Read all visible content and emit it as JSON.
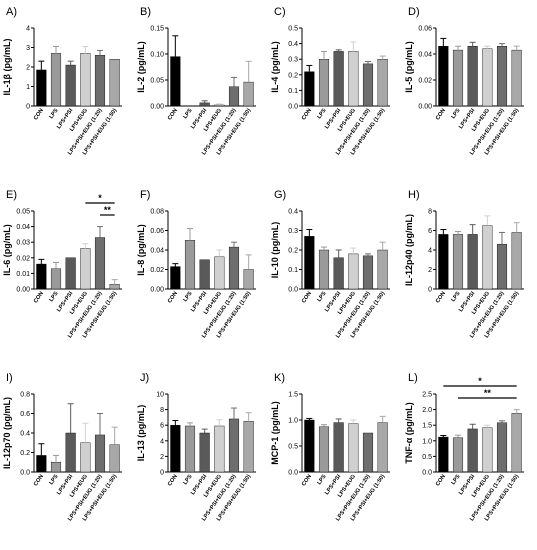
{
  "categories": [
    "CON",
    "LPS",
    "LPS+PSI",
    "LPS+EUG",
    "LPS+PSI+EUG (1:20)",
    "LPS+PSI+EUG (1:50)"
  ],
  "bar_colors": [
    "#000000",
    "#9a9a9a",
    "#5a5a5a",
    "#d0d0d0",
    "#6e6e6e",
    "#a8a8a8"
  ],
  "chart_data": [
    {
      "type": "bar",
      "panel_label": "A)",
      "ylabel": "IL-1β (pg/mL)",
      "ylim": [
        0,
        4
      ],
      "yticks": [
        "0",
        "1",
        "2",
        "3",
        "4"
      ],
      "values": [
        1.85,
        2.7,
        2.1,
        2.7,
        2.6,
        2.4
      ],
      "errors": [
        0.45,
        0.35,
        0.2,
        0.35,
        0.25,
        0.0
      ],
      "significance": []
    },
    {
      "type": "bar",
      "panel_label": "B)",
      "ylabel": "IL-2 (pg/mL)",
      "ylim": [
        0,
        0.15
      ],
      "yticks": [
        "0.00",
        "0.05",
        "0.10",
        "0.15"
      ],
      "values": [
        0.095,
        0.0,
        0.006,
        0.002,
        0.037,
        0.046
      ],
      "errors": [
        0.04,
        0.0,
        0.004,
        0.002,
        0.018,
        0.04
      ],
      "significance": []
    },
    {
      "type": "bar",
      "panel_label": "C)",
      "ylabel": "IL-4 (pg/mL)",
      "ylim": [
        0,
        0.5
      ],
      "yticks": [
        "0.0",
        "0.1",
        "0.2",
        "0.3",
        "0.4",
        "0.5"
      ],
      "values": [
        0.22,
        0.3,
        0.35,
        0.35,
        0.27,
        0.3
      ],
      "errors": [
        0.04,
        0.05,
        0.01,
        0.06,
        0.015,
        0.02
      ],
      "significance": []
    },
    {
      "type": "bar",
      "panel_label": "D)",
      "ylabel": "IL-5 (pg/mL)",
      "ylim": [
        0,
        0.06
      ],
      "yticks": [
        "0.00",
        "0.02",
        "0.04",
        "0.06"
      ],
      "values": [
        0.046,
        0.043,
        0.046,
        0.044,
        0.046,
        0.043
      ],
      "errors": [
        0.006,
        0.003,
        0.003,
        0.002,
        0.002,
        0.003
      ],
      "significance": []
    },
    {
      "type": "bar",
      "panel_label": "E)",
      "ylabel": "IL-6 (pg/mL)",
      "ylim": [
        0,
        0.05
      ],
      "yticks": [
        "0.00",
        "0.01",
        "0.02",
        "0.03",
        "0.04",
        "0.05"
      ],
      "values": [
        0.016,
        0.013,
        0.02,
        0.026,
        0.033,
        0.003
      ],
      "errors": [
        0.003,
        0.004,
        0.0,
        0.003,
        0.007,
        0.003
      ],
      "significance": [
        {
          "from": 3,
          "to": 5,
          "label": "*"
        },
        {
          "from": 4,
          "to": 5,
          "label": "**"
        }
      ]
    },
    {
      "type": "bar",
      "panel_label": "F)",
      "ylabel": "IL-8 (pg/mL)",
      "ylim": [
        0,
        0.08
      ],
      "yticks": [
        "0.00",
        "0.02",
        "0.04",
        "0.06",
        "0.08"
      ],
      "values": [
        0.023,
        0.05,
        0.03,
        0.033,
        0.043,
        0.02
      ],
      "errors": [
        0.003,
        0.012,
        0.0,
        0.007,
        0.005,
        0.015
      ],
      "significance": []
    },
    {
      "type": "bar",
      "panel_label": "G)",
      "ylabel": "IL-10 (pg/mL)",
      "ylim": [
        0,
        0.4
      ],
      "yticks": [
        "0.0",
        "0.1",
        "0.2",
        "0.3",
        "0.4"
      ],
      "values": [
        0.27,
        0.2,
        0.16,
        0.18,
        0.17,
        0.2
      ],
      "errors": [
        0.035,
        0.015,
        0.04,
        0.03,
        0.01,
        0.04
      ],
      "significance": []
    },
    {
      "type": "bar",
      "panel_label": "H)",
      "ylabel": "IL-12p40 (pg/mL)",
      "ylim": [
        0,
        8
      ],
      "yticks": [
        "0",
        "2",
        "4",
        "6",
        "8"
      ],
      "values": [
        5.6,
        5.6,
        5.6,
        6.5,
        4.6,
        5.8
      ],
      "errors": [
        0.5,
        0.3,
        1.0,
        1.0,
        1.2,
        1.0
      ],
      "significance": []
    },
    {
      "type": "bar",
      "panel_label": "I)",
      "ylabel": "IL-12p70 (pg/mL)",
      "ylim": [
        0,
        0.8
      ],
      "yticks": [
        "0.0",
        "0.2",
        "0.4",
        "0.6",
        "0.8"
      ],
      "values": [
        0.17,
        0.1,
        0.4,
        0.3,
        0.38,
        0.28
      ],
      "errors": [
        0.12,
        0.07,
        0.3,
        0.2,
        0.22,
        0.18
      ],
      "significance": []
    },
    {
      "type": "bar",
      "panel_label": "J)",
      "ylabel": "IL-13 (pg/mL)",
      "ylim": [
        0,
        10
      ],
      "yticks": [
        "0",
        "2",
        "4",
        "6",
        "8",
        "10"
      ],
      "values": [
        6.0,
        5.9,
        5.0,
        5.9,
        6.8,
        6.5
      ],
      "errors": [
        0.6,
        0.4,
        0.5,
        0.8,
        1.4,
        1.1
      ],
      "significance": []
    },
    {
      "type": "bar",
      "panel_label": "K)",
      "ylabel": "MCP-1 (pg/mL)",
      "ylim": [
        0,
        1.5
      ],
      "yticks": [
        "0.0",
        "0.5",
        "1.0",
        "1.5"
      ],
      "values": [
        1.0,
        0.87,
        0.95,
        0.93,
        0.75,
        0.95
      ],
      "errors": [
        0.03,
        0.04,
        0.07,
        0.07,
        0.0,
        0.12
      ],
      "significance": []
    },
    {
      "type": "bar",
      "panel_label": "L)",
      "ylabel": "TNF-α (pg/mL)",
      "ylim": [
        0,
        2.5
      ],
      "yticks": [
        "0.0",
        "0.5",
        "1.0",
        "1.5",
        "2.0",
        "2.5"
      ],
      "values": [
        1.12,
        1.1,
        1.38,
        1.42,
        1.58,
        1.88
      ],
      "errors": [
        0.05,
        0.08,
        0.15,
        0.08,
        0.06,
        0.12
      ],
      "significance": [
        {
          "from": 0,
          "to": 5,
          "label": "*"
        },
        {
          "from": 1,
          "to": 5,
          "label": "**"
        }
      ]
    }
  ]
}
